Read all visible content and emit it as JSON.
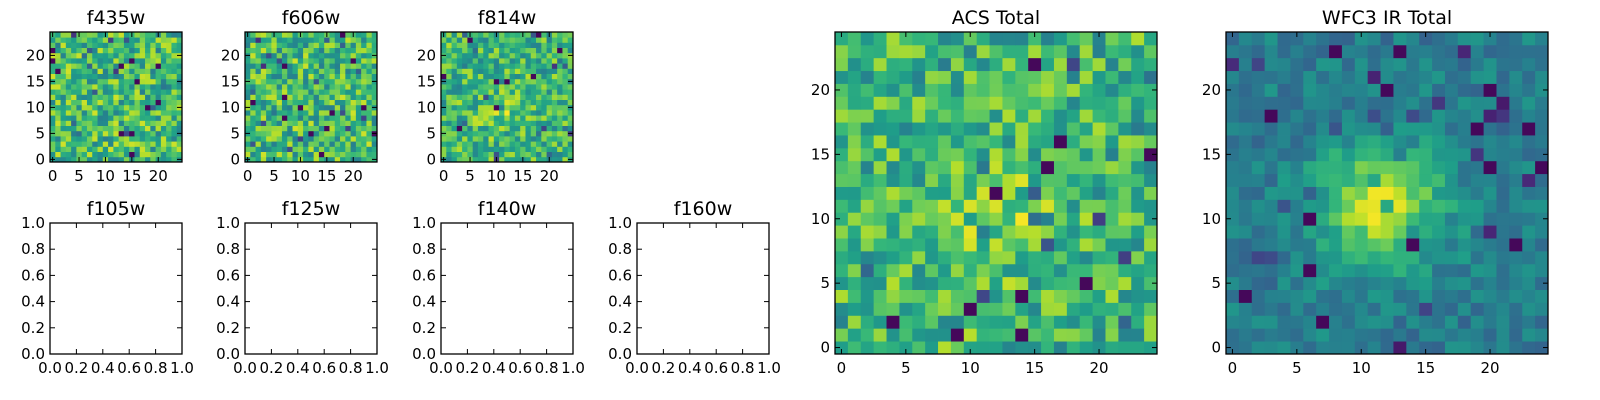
{
  "colormap": "viridis",
  "colors": {
    "viridis_low": "#440154",
    "viridis_mid": "#21918c",
    "viridis_high": "#fde725",
    "frame": "#000000"
  },
  "chart_data": [
    {
      "type": "heatmap",
      "title": "f435w",
      "grid": [
        25,
        25
      ],
      "xticks": [
        "0",
        "5",
        "10",
        "15",
        "20"
      ],
      "yticks": [
        "0",
        "5",
        "10",
        "15",
        "20"
      ],
      "xlim": [
        -0.5,
        24.5
      ],
      "ylim": [
        -0.5,
        24.5
      ],
      "pattern": "noise",
      "seed": 11
    },
    {
      "type": "heatmap",
      "title": "f606w",
      "grid": [
        25,
        25
      ],
      "xticks": [
        "0",
        "5",
        "10",
        "15",
        "20"
      ],
      "yticks": [
        "0",
        "5",
        "10",
        "15",
        "20"
      ],
      "xlim": [
        -0.5,
        24.5
      ],
      "ylim": [
        -0.5,
        24.5
      ],
      "pattern": "noise",
      "seed": 23
    },
    {
      "type": "heatmap",
      "title": "f814w",
      "grid": [
        25,
        25
      ],
      "xticks": [
        "0",
        "5",
        "10",
        "15",
        "20"
      ],
      "yticks": [
        "0",
        "5",
        "10",
        "15",
        "20"
      ],
      "xlim": [
        -0.5,
        24.5
      ],
      "ylim": [
        -0.5,
        24.5
      ],
      "pattern": "faint-source",
      "seed": 37
    },
    {
      "type": "empty",
      "title": "f105w",
      "xticks": [
        "0.0",
        "0.2",
        "0.4",
        "0.6",
        "0.8",
        "1.0"
      ],
      "yticks": [
        "0.0",
        "0.2",
        "0.4",
        "0.6",
        "0.8",
        "1.0"
      ],
      "xlim": [
        0,
        1
      ],
      "ylim": [
        0,
        1
      ]
    },
    {
      "type": "empty",
      "title": "f125w",
      "xticks": [
        "0.0",
        "0.2",
        "0.4",
        "0.6",
        "0.8",
        "1.0"
      ],
      "yticks": [
        "0.0",
        "0.2",
        "0.4",
        "0.6",
        "0.8",
        "1.0"
      ],
      "xlim": [
        0,
        1
      ],
      "ylim": [
        0,
        1
      ]
    },
    {
      "type": "empty",
      "title": "f140w",
      "xticks": [
        "0.0",
        "0.2",
        "0.4",
        "0.6",
        "0.8",
        "1.0"
      ],
      "yticks": [
        "0.0",
        "0.2",
        "0.4",
        "0.6",
        "0.8",
        "1.0"
      ],
      "xlim": [
        0,
        1
      ],
      "ylim": [
        0,
        1
      ]
    },
    {
      "type": "empty",
      "title": "f160w",
      "xticks": [
        "0.0",
        "0.2",
        "0.4",
        "0.6",
        "0.8",
        "1.0"
      ],
      "yticks": [
        "0.0",
        "0.2",
        "0.4",
        "0.6",
        "0.8",
        "1.0"
      ],
      "xlim": [
        0,
        1
      ],
      "ylim": [
        0,
        1
      ]
    },
    {
      "type": "heatmap",
      "title": "ACS Total",
      "grid": [
        25,
        25
      ],
      "xticks": [
        "0",
        "5",
        "10",
        "15",
        "20"
      ],
      "yticks": [
        "0",
        "5",
        "10",
        "15",
        "20"
      ],
      "xlim": [
        -0.5,
        24.5
      ],
      "ylim": [
        -0.5,
        24.5
      ],
      "pattern": "faint-source",
      "seed": 51
    },
    {
      "type": "heatmap",
      "title": "WFC3 IR Total",
      "grid": [
        25,
        25
      ],
      "xticks": [
        "0",
        "5",
        "10",
        "15",
        "20"
      ],
      "yticks": [
        "0",
        "5",
        "10",
        "15",
        "20"
      ],
      "xlim": [
        -0.5,
        24.5
      ],
      "ylim": [
        -0.5,
        24.5
      ],
      "pattern": "bright-source",
      "source_center": [
        11.5,
        11
      ],
      "seed": 73
    }
  ]
}
